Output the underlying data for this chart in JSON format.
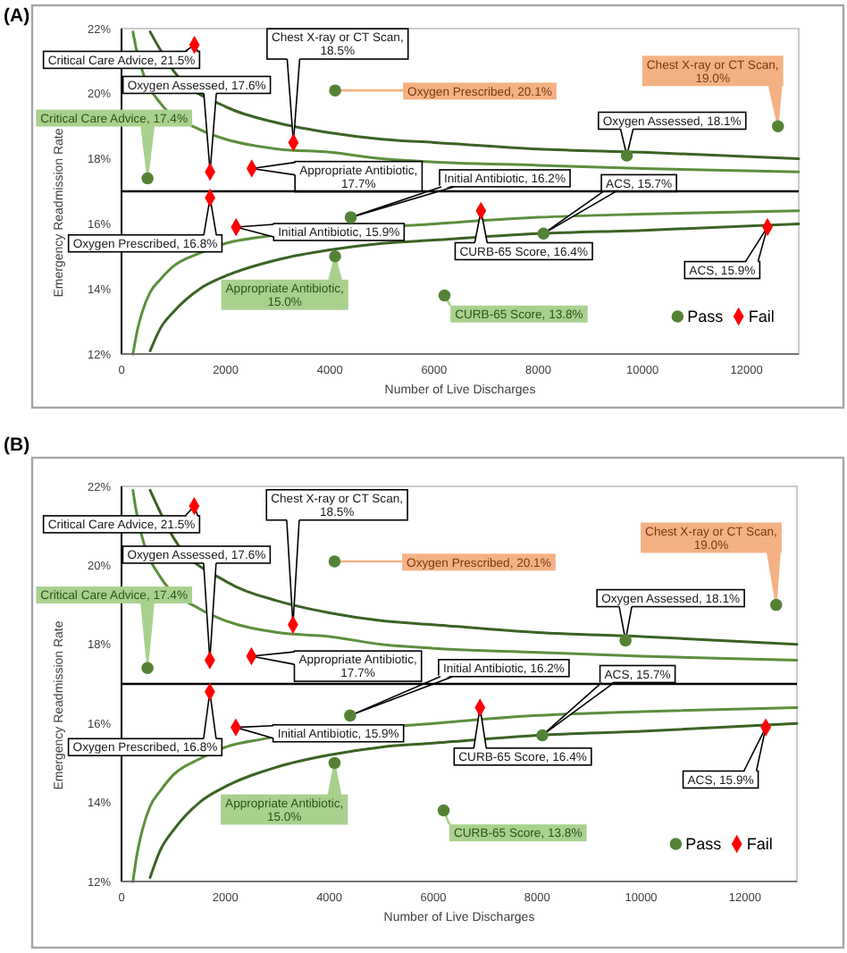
{
  "chart_data": [
    {
      "type": "scatter",
      "title": "(A)",
      "xlabel": "Number of Live Discharges",
      "ylabel": "Emergency Readmission Rate",
      "xlim": [
        0,
        13000
      ],
      "xticks": [
        0,
        2000,
        4000,
        6000,
        8000,
        10000,
        12000
      ],
      "ylim": [
        12,
        22
      ],
      "yticks": [
        {
          "value": 12,
          "label": "12%"
        },
        {
          "value": 14,
          "label": "14%"
        },
        {
          "value": 16,
          "label": "16%"
        },
        {
          "value": 18,
          "label": "18%"
        },
        {
          "value": 20,
          "label": "20%"
        },
        {
          "value": 22,
          "label": "22%"
        }
      ],
      "legend": "bottom right",
      "series": [
        {
          "name": "Pass",
          "marker": "circle",
          "color": "#548235",
          "x": [
            500,
            4100,
            12600,
            9700,
            4400,
            8100,
            4100,
            6200
          ],
          "values": [
            17.4,
            20.1,
            19.0,
            18.1,
            16.2,
            15.7,
            15.0,
            13.8
          ]
        },
        {
          "name": "Fail",
          "marker": "diamond",
          "color": "#ff0000",
          "x": [
            1400,
            3300,
            1700,
            2500,
            1700,
            2200,
            6900,
            12400
          ],
          "values": [
            21.5,
            18.5,
            17.6,
            17.7,
            16.8,
            15.9,
            16.4,
            15.9
          ]
        },
        {
          "type": "line",
          "color": "#3a6324",
          "x": [
            550,
            1000,
            2000,
            3000,
            4000,
            5000,
            6000,
            8000,
            10000,
            13000
          ],
          "values": [
            21.9,
            20.7,
            19.6,
            19.1,
            18.8,
            18.6,
            18.5,
            18.3,
            18.2,
            18.0
          ]
        },
        {
          "type": "line",
          "color": "#5b8f3c",
          "x": [
            220,
            280,
            400,
            750,
            1500,
            2000,
            3000,
            4000,
            5000,
            6000,
            8000,
            10000,
            13000
          ],
          "values": [
            21.9,
            21.4,
            20.7,
            19.7,
            18.9,
            18.6,
            18.3,
            18.2,
            18.0,
            17.9,
            17.8,
            17.7,
            17.6
          ]
        },
        {
          "type": "line",
          "color": "#5b8f3c",
          "x": [
            220,
            300,
            400,
            550,
            750,
            1000,
            1500,
            2000,
            2700,
            6000,
            8000,
            10000,
            13000
          ],
          "values": [
            12.0,
            12.7,
            13.3,
            13.9,
            14.3,
            14.7,
            15.1,
            15.4,
            15.6,
            16.0,
            16.2,
            16.3,
            16.4
          ]
        },
        {
          "type": "line",
          "color": "#3a6324",
          "x": [
            550,
            750,
            1000,
            1500,
            2000,
            3000,
            4000,
            5000,
            6000,
            8000,
            10000,
            13000
          ],
          "values": [
            12.1,
            12.8,
            13.3,
            14.0,
            14.4,
            14.9,
            15.2,
            15.4,
            15.5,
            15.7,
            15.8,
            16.0
          ]
        }
      ],
      "ref_lines": [
        {
          "axis": "y",
          "value": 17,
          "color": "#000000"
        }
      ],
      "annotations": [
        {
          "text": "Critical Care Advice, 21.5%",
          "x": 1400,
          "y": 21.5
        },
        {
          "text": "Chest X-ray or CT Scan, 18.5%",
          "x": 3300,
          "y": 18.5
        },
        {
          "text": "Oxygen Assessed, 17.6%",
          "x": 1700,
          "y": 17.6
        },
        {
          "text": "Appropriate Antibiotic, 17.7%",
          "x": 2500,
          "y": 17.7
        },
        {
          "text": "Oxygen Prescribed, 16.8%",
          "x": 1700,
          "y": 16.8
        },
        {
          "text": "Initial Antibiotic, 15.9%",
          "x": 2200,
          "y": 15.9
        },
        {
          "text": "CURB-65 Score, 16.4%",
          "x": 6900,
          "y": 16.4
        },
        {
          "text": "ACS, 15.9%",
          "x": 12400,
          "y": 15.9
        },
        {
          "text": "Critical Care Advice, 17.4%",
          "x": 500,
          "y": 17.4
        },
        {
          "text": "Oxygen Prescribed, 20.1%",
          "x": 4100,
          "y": 20.1
        },
        {
          "text": "Chest X-ray or CT Scan, 19.0%",
          "x": 12600,
          "y": 19.0
        },
        {
          "text": "Oxygen Assessed, 18.1%",
          "x": 9700,
          "y": 18.1
        },
        {
          "text": "Initial Antibiotic, 16.2%",
          "x": 4400,
          "y": 16.2
        },
        {
          "text": "ACS, 15.7%",
          "x": 8100,
          "y": 15.7
        },
        {
          "text": "Appropriate Antibiotic, 15.0%",
          "x": 4100,
          "y": 15.0
        },
        {
          "text": "CURB-65 Score, 13.8%",
          "x": 6200,
          "y": 13.8
        }
      ]
    },
    {
      "type": "scatter",
      "title": "(B)",
      "xlabel": "Number of Live Discharges",
      "ylabel": "Emergency Readmission Rate",
      "xlim": [
        0,
        13000
      ],
      "xticks": [
        0,
        2000,
        4000,
        6000,
        8000,
        10000,
        12000
      ],
      "ylim": [
        12,
        22
      ],
      "yticks": [
        {
          "value": 12,
          "label": "12%"
        },
        {
          "value": 14,
          "label": "14%"
        },
        {
          "value": 16,
          "label": "16%"
        },
        {
          "value": 18,
          "label": "18%"
        },
        {
          "value": 20,
          "label": "20%"
        },
        {
          "value": 22,
          "label": "22%"
        }
      ],
      "legend": "bottom right",
      "series": [
        {
          "name": "Pass",
          "marker": "circle",
          "color": "#548235",
          "x": [
            500,
            4100,
            12600,
            9700,
            4400,
            8100,
            4100,
            6200
          ],
          "values": [
            17.4,
            20.1,
            19.0,
            18.1,
            16.2,
            15.7,
            15.0,
            13.8
          ]
        },
        {
          "name": "Fail",
          "marker": "diamond",
          "color": "#ff0000",
          "x": [
            1400,
            3300,
            1700,
            2500,
            1700,
            2200,
            6900,
            12400
          ],
          "values": [
            21.5,
            18.5,
            17.6,
            17.7,
            16.8,
            15.9,
            16.4,
            15.9
          ]
        },
        {
          "type": "line",
          "color": "#3a6324",
          "x": [
            550,
            1000,
            2000,
            3000,
            4000,
            5000,
            6000,
            8000,
            10000,
            13000
          ],
          "values": [
            21.9,
            20.7,
            19.6,
            19.1,
            18.8,
            18.6,
            18.5,
            18.3,
            18.2,
            18.0
          ]
        },
        {
          "type": "line",
          "color": "#5b8f3c",
          "x": [
            220,
            280,
            400,
            750,
            1500,
            2000,
            3000,
            4000,
            5000,
            6000,
            8000,
            10000,
            13000
          ],
          "values": [
            21.9,
            21.4,
            20.7,
            19.7,
            18.9,
            18.6,
            18.3,
            18.2,
            18.0,
            17.9,
            17.8,
            17.7,
            17.6
          ]
        },
        {
          "type": "line",
          "color": "#5b8f3c",
          "x": [
            220,
            300,
            400,
            550,
            750,
            1000,
            1500,
            2000,
            2700,
            6000,
            8000,
            10000,
            13000
          ],
          "values": [
            12.0,
            12.7,
            13.3,
            13.9,
            14.3,
            14.7,
            15.1,
            15.4,
            15.6,
            16.0,
            16.2,
            16.3,
            16.4
          ]
        },
        {
          "type": "line",
          "color": "#3a6324",
          "x": [
            550,
            750,
            1000,
            1500,
            2000,
            3000,
            4000,
            5000,
            6000,
            8000,
            10000,
            13000
          ],
          "values": [
            12.1,
            12.8,
            13.3,
            14.0,
            14.4,
            14.9,
            15.2,
            15.4,
            15.5,
            15.7,
            15.8,
            16.0
          ]
        }
      ],
      "ref_lines": [
        {
          "axis": "y",
          "value": 17,
          "color": "#000000"
        }
      ],
      "annotations": [
        {
          "text": "Critical Care Advice, 21.5%",
          "x": 1400,
          "y": 21.5
        },
        {
          "text": "Chest X-ray or CT Scan, 18.5%",
          "x": 3300,
          "y": 18.5
        },
        {
          "text": "Oxygen Assessed, 17.6%",
          "x": 1700,
          "y": 17.6
        },
        {
          "text": "Appropriate Antibiotic, 17.7%",
          "x": 2500,
          "y": 17.7
        },
        {
          "text": "Oxygen Prescribed, 16.8%",
          "x": 1700,
          "y": 16.8
        },
        {
          "text": "Initial Antibiotic, 15.9%",
          "x": 2200,
          "y": 15.9
        },
        {
          "text": "CURB-65 Score, 16.4%",
          "x": 6900,
          "y": 16.4
        },
        {
          "text": "ACS, 15.9%",
          "x": 12400,
          "y": 15.9
        },
        {
          "text": "Critical Care Advice, 17.4%",
          "x": 500,
          "y": 17.4
        },
        {
          "text": "Oxygen Prescribed, 20.1%",
          "x": 4100,
          "y": 20.1
        },
        {
          "text": "Chest X-ray or CT Scan, 19.0%",
          "x": 12600,
          "y": 19.0
        },
        {
          "text": "Oxygen Assessed, 18.1%",
          "x": 9700,
          "y": 18.1
        },
        {
          "text": "Initial Antibiotic, 16.2%",
          "x": 4400,
          "y": 16.2
        },
        {
          "text": "ACS, 15.7%",
          "x": 8100,
          "y": 15.7
        },
        {
          "text": "Appropriate Antibiotic, 15.0%",
          "x": 4100,
          "y": 15.0
        },
        {
          "text": "CURB-65 Score, 13.8%",
          "x": 6200,
          "y": 13.8
        }
      ]
    }
  ]
}
